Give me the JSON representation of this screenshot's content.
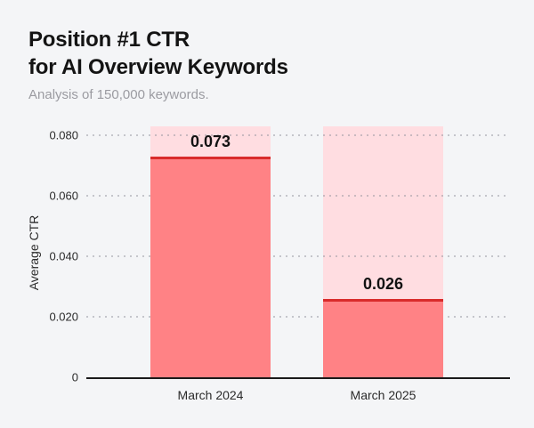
{
  "header": {
    "title_line1": "Position #1 CTR",
    "title_line2": "for AI Overview Keywords",
    "subtitle": "Analysis of 150,000 keywords."
  },
  "chart_data": {
    "type": "bar",
    "title": "Position #1 CTR for AI Overview Keywords",
    "subtitle": "Analysis of 150,000 keywords.",
    "xlabel": "",
    "ylabel": "Average CTR",
    "categories": [
      "March 2024",
      "March 2025"
    ],
    "values": [
      0.073,
      0.026
    ],
    "value_labels": [
      "0.073",
      "0.026"
    ],
    "ylim": [
      0,
      0.083
    ],
    "yticks": [
      0,
      0.02,
      0.04,
      0.06,
      0.08
    ],
    "ytick_labels": [
      "0",
      "0.020",
      "0.040",
      "0.060",
      "0.080"
    ],
    "grid": "horizontal-dotted",
    "legend": "none",
    "background_bar_value": 0.083,
    "colors": {
      "page_background": "#f4f5f7",
      "bar_fill": "#ff8285",
      "bar_background": "#ffdde1",
      "bar_top_line": "#d92b2b",
      "axis_line": "#1a1a1a",
      "title_text": "#141414",
      "subtitle_text": "#9b9ba1",
      "tick_text": "#2b2b2b",
      "value_text": "#121212"
    }
  }
}
